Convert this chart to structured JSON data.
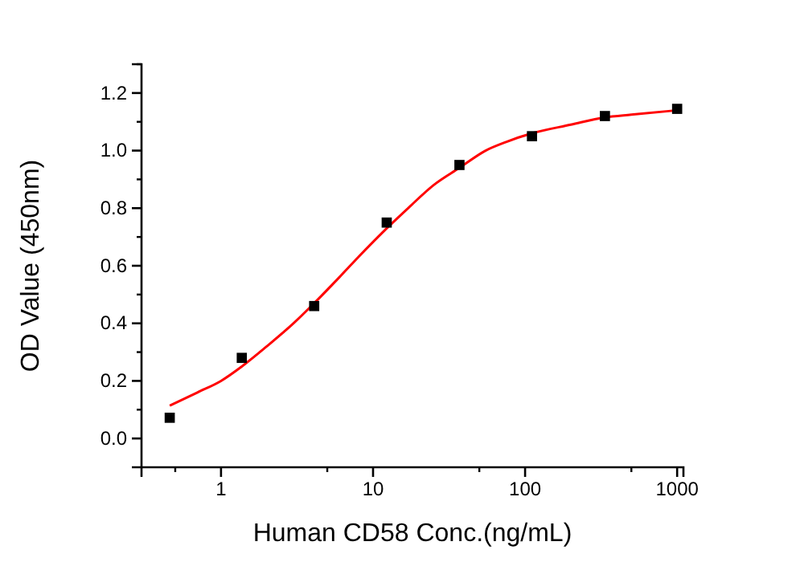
{
  "chart_data": {
    "type": "scatter",
    "xlabel": "Human CD58 Conc.(ng/mL)",
    "ylabel": "OD Value (450nm)",
    "log": "x",
    "xlim": [
      0.3,
      1100
    ],
    "xticks": [
      1,
      10,
      100,
      1000
    ],
    "ylim": [
      -0.1,
      1.3
    ],
    "yticks": [
      {
        "value": 0,
        "label": "0.0"
      },
      0.2,
      0.4,
      0.6,
      0.8,
      {
        "value": 1,
        "label": "1.0"
      },
      1.2
    ],
    "grid": false,
    "series": [
      {
        "type": "line",
        "color": "#ff0000",
        "marker": "none",
        "line_style": "solid",
        "x": [
          0.46,
          0.7,
          1,
          1.37,
          2,
          3,
          4.1,
          6,
          8,
          12.3,
          17,
          25,
          37,
          55,
          75,
          111,
          200,
          333,
          500,
          1000
        ],
        "values": [
          0.114,
          0.16,
          0.2,
          0.25,
          0.32,
          0.4,
          0.47,
          0.56,
          0.63,
          0.73,
          0.8,
          0.88,
          0.94,
          1.0,
          1.03,
          1.06,
          1.09,
          1.115,
          1.125,
          1.14
        ]
      },
      {
        "color": "#000000",
        "marker": "square",
        "x": [
          0.46,
          1.37,
          4.1,
          12.3,
          37,
          111,
          335,
          1000
        ],
        "values": [
          0.072,
          0.28,
          0.46,
          0.75,
          0.95,
          1.05,
          1.12,
          1.145
        ]
      }
    ]
  }
}
